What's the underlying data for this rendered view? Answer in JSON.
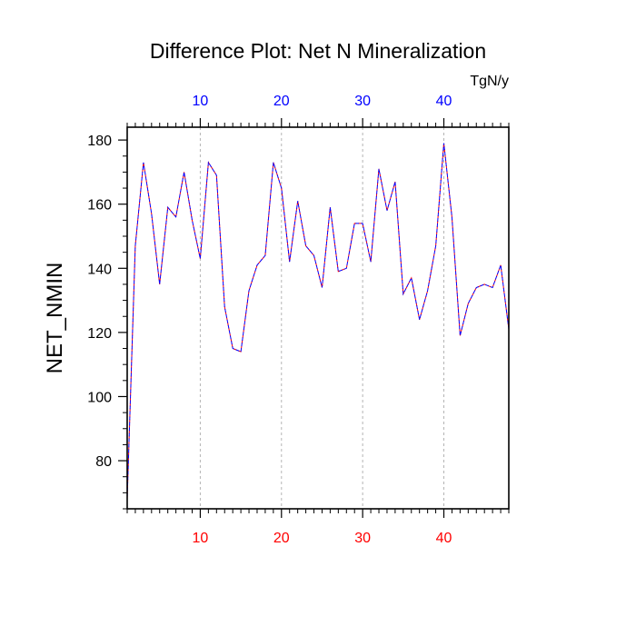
{
  "chart_data": {
    "type": "line",
    "title": "Difference Plot: Net N Mineralization",
    "units_label": "TgN/y",
    "ylabel": "NET_NMIN",
    "xlim": [
      1,
      48
    ],
    "ylim": [
      65,
      184
    ],
    "x_ticks": [
      10,
      20,
      30,
      40
    ],
    "y_ticks": [
      80,
      100,
      120,
      140,
      160,
      180
    ],
    "x_tick_labels": [
      "10",
      "20",
      "30",
      "40"
    ],
    "y_tick_labels": [
      "80",
      "100",
      "120",
      "140",
      "160",
      "180"
    ],
    "grid": "vertical dashed at major x ticks",
    "series": [
      {
        "color": "#ff0000",
        "dash": "dashed",
        "x": [
          1,
          2,
          3,
          4,
          5,
          6,
          7,
          8,
          9,
          10,
          11,
          12,
          13,
          14,
          15,
          16,
          17,
          18,
          19,
          20,
          21,
          22,
          23,
          24,
          25,
          26,
          27,
          28,
          29,
          30,
          31,
          32,
          33,
          34,
          35,
          36,
          37,
          38,
          39,
          40,
          41,
          42,
          43,
          44,
          45,
          46,
          47,
          48
        ],
        "values": [
          68,
          147,
          173,
          157,
          135,
          159,
          156,
          170,
          155,
          143,
          173,
          169,
          128,
          115,
          114,
          133,
          141,
          144,
          173,
          165,
          142,
          161,
          147,
          144,
          134,
          159,
          139,
          140,
          154,
          154,
          142,
          171,
          158,
          167,
          132,
          137,
          124,
          133,
          147,
          179,
          156,
          119,
          129,
          134,
          135,
          134,
          141,
          121
        ]
      },
      {
        "color": "#0000ff",
        "dash": "dashed",
        "x": [
          1,
          2,
          3,
          4,
          5,
          6,
          7,
          8,
          9,
          10,
          11,
          12,
          13,
          14,
          15,
          16,
          17,
          18,
          19,
          20,
          21,
          22,
          23,
          24,
          25,
          26,
          27,
          28,
          29,
          30,
          31,
          32,
          33,
          34,
          35,
          36,
          37,
          38,
          39,
          40,
          41,
          42,
          43,
          44,
          45,
          46,
          47,
          48
        ],
        "values": [
          68,
          147,
          173,
          157,
          135,
          159,
          156,
          170,
          155,
          143,
          173,
          169,
          128,
          115,
          114,
          133,
          141,
          144,
          173,
          165,
          142,
          161,
          147,
          144,
          134,
          159,
          139,
          140,
          154,
          154,
          142,
          171,
          158,
          167,
          132,
          137,
          124,
          133,
          147,
          179,
          156,
          119,
          129,
          134,
          135,
          134,
          141,
          121
        ]
      }
    ],
    "top_tick_color": "#0000ff",
    "bottom_tick_color": "#ff0000",
    "grid_color": "#b4b4b4"
  }
}
